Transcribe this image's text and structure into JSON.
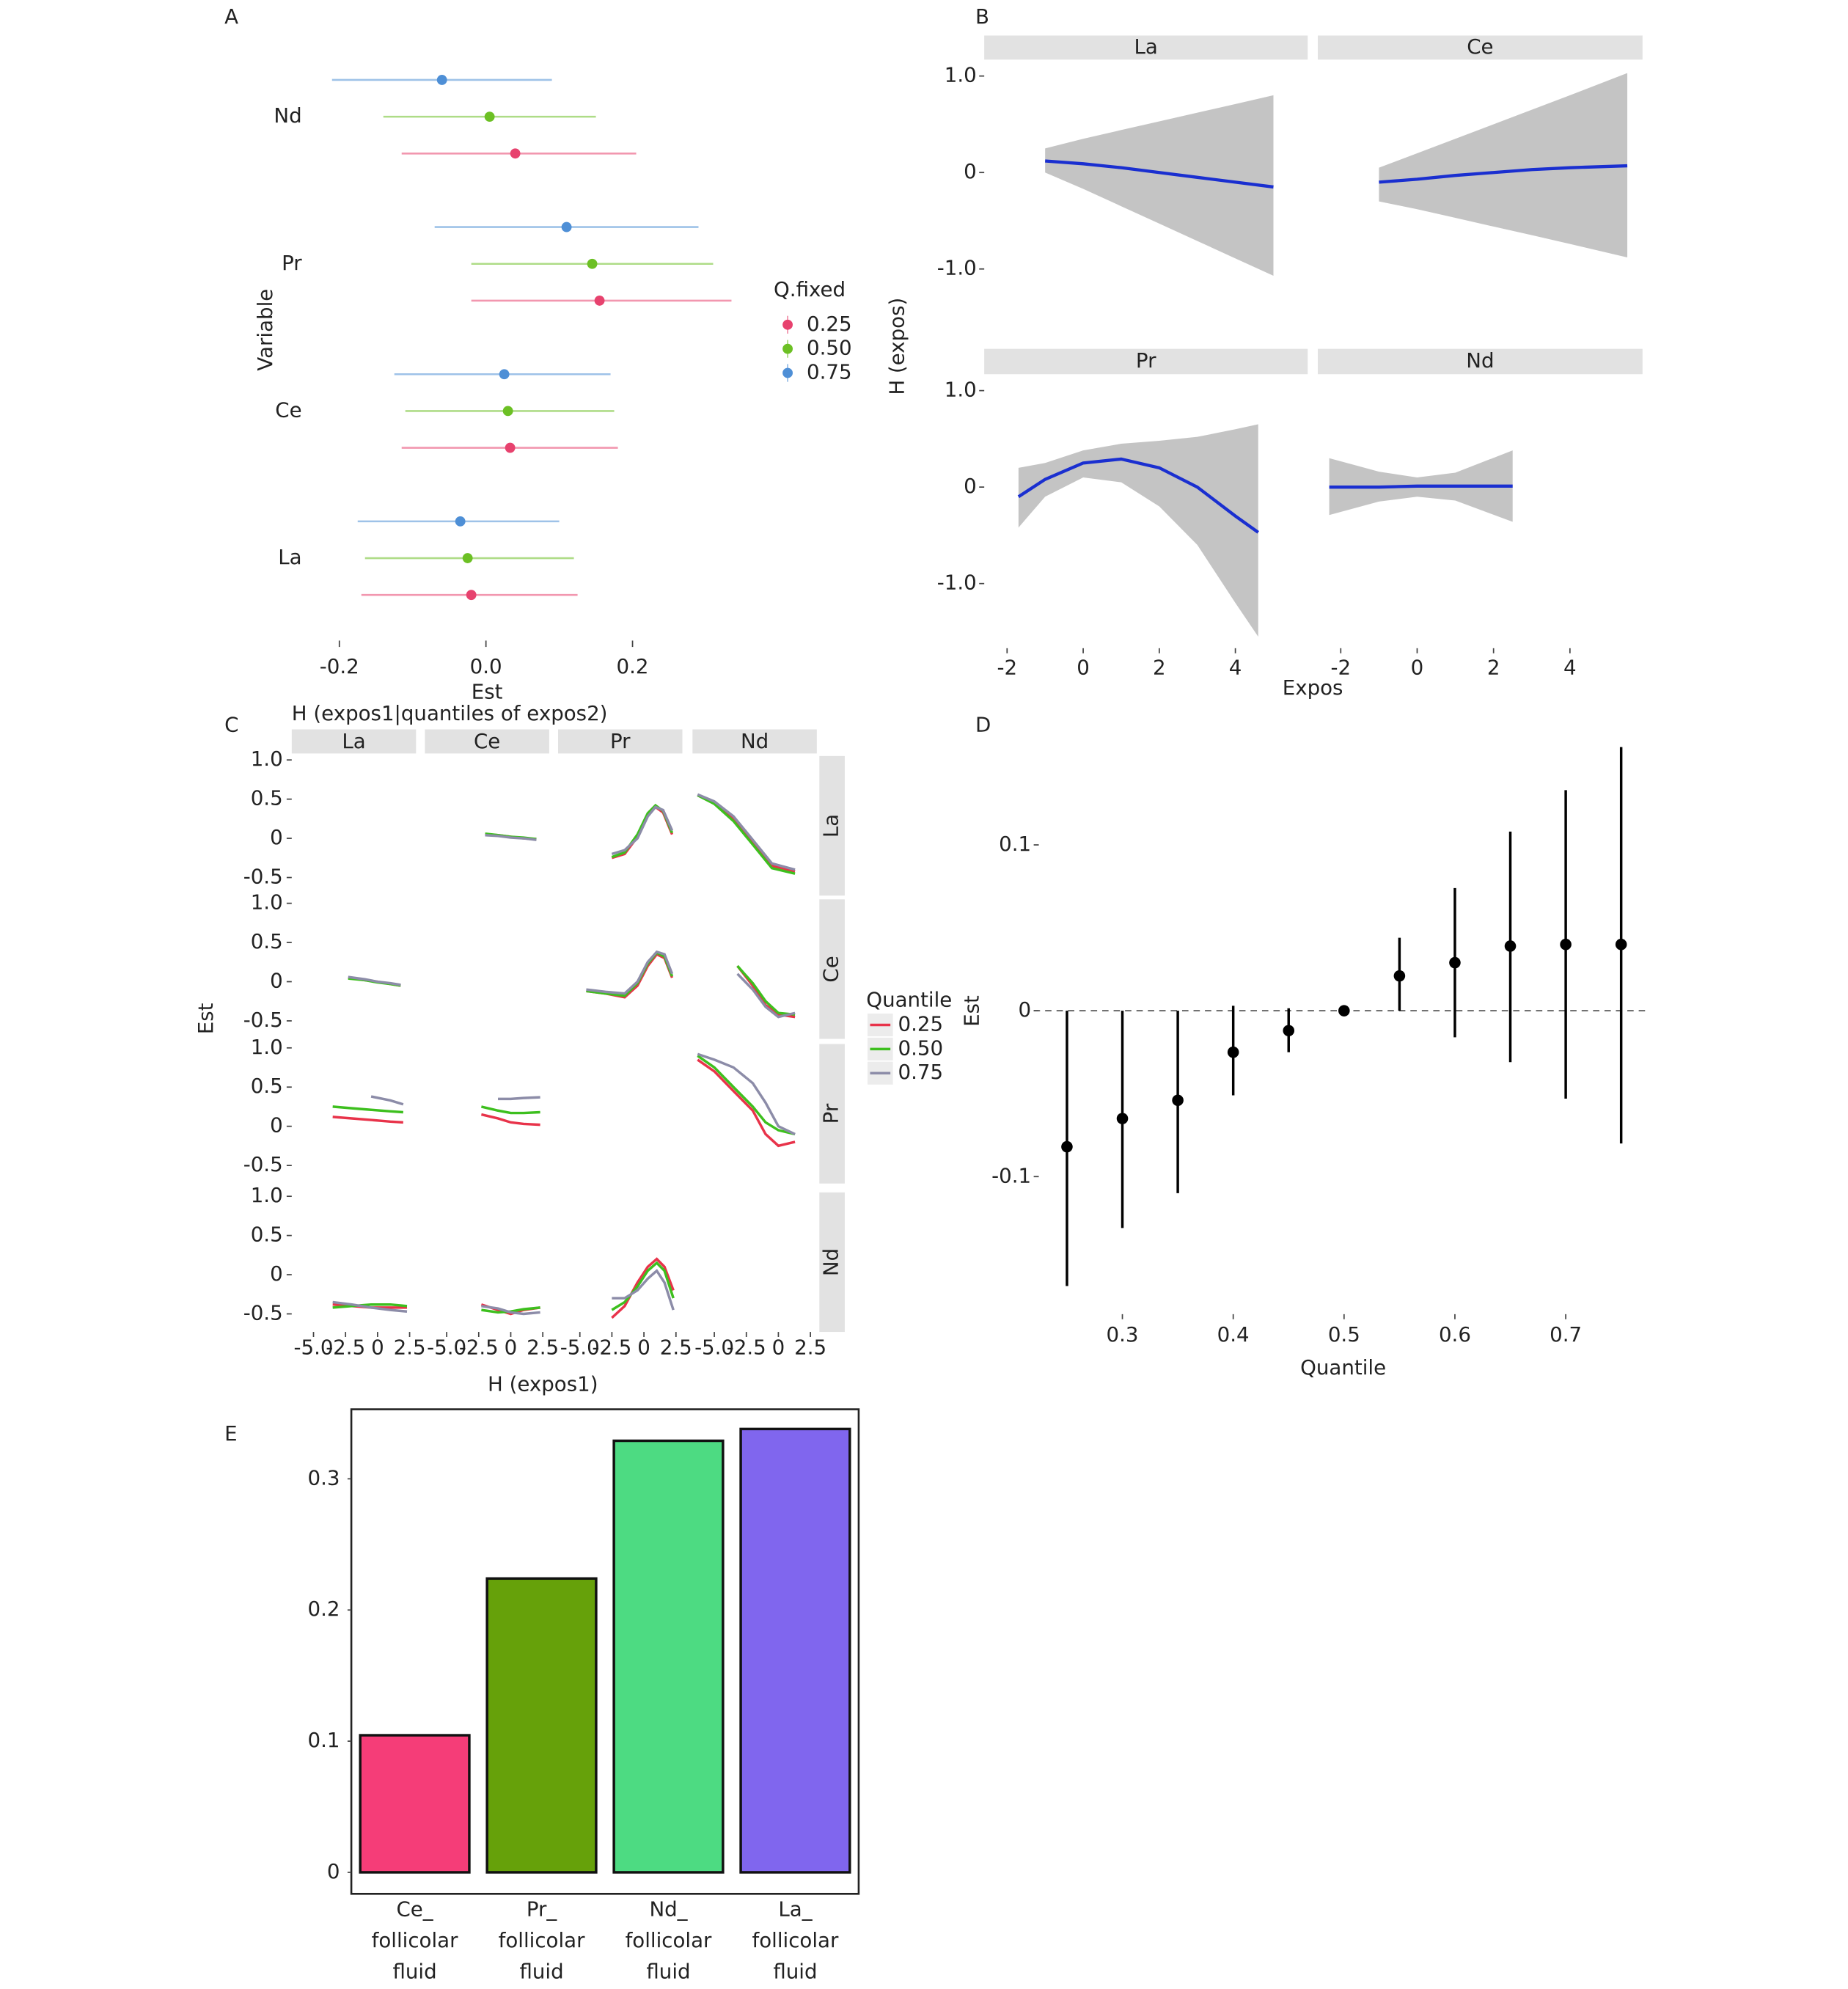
{
  "chart_data": [
    {
      "type": "forest",
      "label": "A",
      "xlabel": "Est",
      "ylabel": "Variable",
      "categories": [
        "La",
        "Ce",
        "Pr",
        "Nd"
      ],
      "legend_title": "Q.fixed",
      "xlim": [
        -0.265,
        0.358
      ],
      "xticks": [
        -0.2,
        {
          "value": 0,
          "label": "0.0"
        },
        0.2
      ],
      "series": [
        {
          "name": "0.25",
          "color": "#e7426e",
          "values": [
            -0.02,
            0.033,
            0.155,
            0.04
          ],
          "lower": [
            -0.17,
            -0.115,
            -0.02,
            -0.115
          ],
          "upper": [
            0.125,
            0.18,
            0.335,
            0.205
          ]
        },
        {
          "name": "0.50",
          "color": "#6cc024",
          "values": [
            -0.025,
            0.03,
            0.145,
            0.005
          ],
          "lower": [
            -0.165,
            -0.11,
            -0.02,
            -0.14
          ],
          "upper": [
            0.12,
            0.175,
            0.31,
            0.15
          ]
        },
        {
          "name": "0.75",
          "color": "#4e8fd6",
          "values": [
            -0.035,
            0.025,
            0.11,
            -0.06
          ],
          "lower": [
            -0.175,
            -0.125,
            -0.07,
            -0.21
          ],
          "upper": [
            0.1,
            0.17,
            0.29,
            0.09
          ]
        }
      ]
    },
    {
      "type": "smooth-facets",
      "label": "B",
      "xlabel": "Expos",
      "ylabel": "H (expos)",
      "line_color": "#1a2fd0",
      "band_color": "#c4c4c4",
      "xlim": [
        -2.6,
        5.9
      ],
      "xticks": [
        -2,
        0,
        2,
        4
      ],
      "ylim": [
        -1.67,
        1.17
      ],
      "yticks": [
        {
          "value": 1,
          "label": "1.0"
        },
        0,
        {
          "value": -1,
          "label": "-1.0"
        }
      ],
      "facets": [
        {
          "name": "La",
          "x": [
            -1,
            0,
            1,
            2,
            3,
            4,
            5
          ],
          "values": [
            0.12,
            0.09,
            0.05,
            0.0,
            -0.05,
            -0.1,
            -0.15
          ],
          "lower": [
            0.0,
            -0.17,
            -0.35,
            -0.53,
            -0.71,
            -0.89,
            -1.07
          ],
          "upper": [
            0.25,
            0.35,
            0.44,
            0.53,
            0.62,
            0.71,
            0.8
          ]
        },
        {
          "name": "Ce",
          "x": [
            -1,
            0,
            1,
            2,
            3,
            4,
            5.5
          ],
          "values": [
            -0.1,
            -0.07,
            -0.03,
            0.0,
            0.03,
            0.05,
            0.07
          ],
          "lower": [
            -0.3,
            -0.38,
            -0.47,
            -0.56,
            -0.65,
            -0.74,
            -0.88
          ],
          "upper": [
            0.05,
            0.2,
            0.35,
            0.5,
            0.65,
            0.8,
            1.03
          ]
        },
        {
          "name": "Pr",
          "x": [
            -1.7,
            -1,
            0,
            1,
            2,
            3,
            4,
            4.6
          ],
          "values": [
            -0.1,
            0.08,
            0.25,
            0.29,
            0.2,
            0.0,
            -0.3,
            -0.47
          ],
          "lower": [
            -0.42,
            -0.1,
            0.1,
            0.05,
            -0.2,
            -0.6,
            -1.2,
            -1.55
          ],
          "upper": [
            0.2,
            0.25,
            0.38,
            0.45,
            0.48,
            0.52,
            0.6,
            0.65
          ]
        },
        {
          "name": "Nd",
          "x": [
            -2.3,
            -1,
            0,
            1,
            2.5
          ],
          "values": [
            0,
            0,
            0.01,
            0.01,
            0.01
          ],
          "lower": [
            -0.29,
            -0.15,
            -0.1,
            -0.14,
            -0.36
          ],
          "upper": [
            0.3,
            0.16,
            0.1,
            0.15,
            0.38
          ]
        }
      ]
    },
    {
      "type": "line-facets",
      "label": "C",
      "title": "H (expos1|quantiles of expos2)",
      "xlabel": "H (expos1)",
      "ylabel": "Est",
      "columns": [
        "La",
        "Ce",
        "Pr",
        "Nd"
      ],
      "rows": [
        "La",
        "Ce",
        "Pr",
        "Nd"
      ],
      "legend_title": "Quantile",
      "series": [
        {
          "name": "0.25",
          "color": "#e8334a"
        },
        {
          "name": "0.50",
          "color": "#3dbf1e"
        },
        {
          "name": "0.75",
          "color": "#8c8ca8"
        }
      ],
      "xlim": [
        -6.7,
        3.0
      ],
      "xticks": [
        {
          "value": -5,
          "label": "-5.0"
        },
        -2.5,
        0,
        2.5
      ],
      "ylim": [
        -0.73,
        1.05
      ],
      "yticks": [
        {
          "value": 1,
          "label": "1.0"
        },
        0.5,
        0,
        -0.5
      ],
      "panels": [
        [
          null,
          {
            "x": [
              -2,
              -1,
              0,
              1,
              2
            ],
            "lines": [
              [
                0.05,
                0.04,
                0.02,
                0.0,
                -0.01
              ],
              [
                0.06,
                0.04,
                0.02,
                0.01,
                -0.01
              ],
              [
                0.04,
                0.03,
                0.01,
                0.0,
                -0.02
              ]
            ]
          },
          {
            "x": [
              -2.5,
              -1.5,
              -0.5,
              0.3,
              0.9,
              1.5,
              2.2
            ],
            "lines": [
              [
                -0.25,
                -0.2,
                0.02,
                0.3,
                0.4,
                0.33,
                0.05
              ],
              [
                -0.24,
                -0.18,
                0.05,
                0.32,
                0.42,
                0.35,
                0.07
              ],
              [
                -0.2,
                -0.15,
                0.0,
                0.28,
                0.4,
                0.36,
                0.1
              ]
            ]
          },
          {
            "x": [
              -6.3,
              -5,
              -3.5,
              -2,
              -0.5,
              1.3
            ],
            "lines": [
              [
                0.55,
                0.45,
                0.25,
                -0.05,
                -0.35,
                -0.42
              ],
              [
                0.55,
                0.44,
                0.22,
                -0.08,
                -0.38,
                -0.45
              ],
              [
                0.56,
                0.47,
                0.28,
                -0.02,
                -0.32,
                -0.4
              ]
            ]
          }
        ],
        [
          {
            "x": [
              -2.3,
              -1,
              0,
              1,
              1.8
            ],
            "lines": [
              [
                0.05,
                0.02,
                0.0,
                -0.03,
                -0.05
              ],
              [
                0.04,
                0.02,
                -0.01,
                -0.03,
                -0.05
              ],
              [
                0.06,
                0.03,
                0.0,
                -0.02,
                -0.04
              ]
            ]
          },
          null,
          {
            "x": [
              -4.5,
              -3,
              -1.5,
              -0.5,
              0.3,
              1,
              1.6,
              2.2
            ],
            "lines": [
              [
                -0.12,
                -0.15,
                -0.2,
                -0.05,
                0.2,
                0.35,
                0.3,
                0.05
              ],
              [
                -0.12,
                -0.15,
                -0.18,
                -0.02,
                0.23,
                0.37,
                0.32,
                0.07
              ],
              [
                -0.1,
                -0.13,
                -0.15,
                0.0,
                0.25,
                0.38,
                0.35,
                0.1
              ]
            ]
          },
          {
            "x": [
              -3.2,
              -2,
              -1,
              0,
              1.3
            ],
            "lines": [
              [
                0.2,
                -0.05,
                -0.3,
                -0.42,
                -0.45
              ],
              [
                0.2,
                -0.02,
                -0.25,
                -0.4,
                -0.42
              ],
              [
                0.1,
                -0.1,
                -0.32,
                -0.45,
                -0.4
              ]
            ]
          }
        ],
        [
          {
            "x": [
              -3.5,
              -2,
              -0.5,
              1,
              2
            ],
            "lines": [
              [
                0.12,
                0.1,
                0.08,
                0.06,
                0.05
              ],
              [
                0.25,
                0.23,
                0.21,
                0.19,
                0.18
              ],
              [
                null,
                null,
                0.38,
                0.33,
                0.28
              ]
            ]
          },
          {
            "x": [
              -2.3,
              -1,
              0,
              1,
              2.3
            ],
            "lines": [
              [
                0.15,
                0.1,
                0.05,
                0.03,
                0.02
              ],
              [
                0.25,
                0.2,
                0.17,
                0.17,
                0.18
              ],
              [
                null,
                0.35,
                0.35,
                0.36,
                0.37
              ]
            ]
          },
          null,
          {
            "x": [
              -6.3,
              -5,
              -3.5,
              -2,
              -1,
              0,
              1.3
            ],
            "lines": [
              [
                0.85,
                0.7,
                0.45,
                0.2,
                -0.1,
                -0.25,
                -0.2
              ],
              [
                0.9,
                0.75,
                0.5,
                0.25,
                0.05,
                -0.05,
                -0.1
              ],
              [
                0.92,
                0.85,
                0.75,
                0.55,
                0.3,
                0.0,
                -0.1
              ]
            ]
          }
        ],
        [
          {
            "x": [
              -3.5,
              -2,
              -0.5,
              1,
              2.3
            ],
            "lines": [
              [
                -0.38,
                -0.4,
                -0.42,
                -0.42,
                -0.42
              ],
              [
                -0.42,
                -0.4,
                -0.38,
                -0.38,
                -0.4
              ],
              [
                -0.35,
                -0.38,
                -0.42,
                -0.45,
                -0.47
              ]
            ]
          },
          {
            "x": [
              -2.3,
              -1,
              0,
              1,
              2.3
            ],
            "lines": [
              [
                -0.38,
                -0.45,
                -0.5,
                -0.45,
                -0.42
              ],
              [
                -0.45,
                -0.48,
                -0.47,
                -0.44,
                -0.42
              ],
              [
                -0.4,
                -0.43,
                -0.48,
                -0.5,
                -0.48
              ]
            ]
          },
          {
            "x": [
              -2.5,
              -1.5,
              -0.5,
              0.3,
              1,
              1.6,
              2.3
            ],
            "lines": [
              [
                -0.55,
                -0.4,
                -0.1,
                0.1,
                0.2,
                0.1,
                -0.2
              ],
              [
                -0.45,
                -0.35,
                -0.15,
                0.05,
                0.15,
                0.05,
                -0.3
              ],
              [
                -0.3,
                -0.3,
                -0.2,
                -0.05,
                0.05,
                -0.1,
                -0.45
              ]
            ]
          },
          null
        ]
      ]
    },
    {
      "type": "pointrange",
      "label": "D",
      "xlabel": "Quantile",
      "ylabel": "Est",
      "color": "#000000",
      "hline": 0,
      "x": [
        0.25,
        0.3,
        0.35,
        0.4,
        0.45,
        0.5,
        0.55,
        0.6,
        0.65,
        0.7,
        0.75
      ],
      "values": [
        -0.082,
        -0.065,
        -0.054,
        -0.025,
        -0.012,
        0,
        0.021,
        0.029,
        0.039,
        0.04,
        0.04
      ],
      "lower": [
        -0.166,
        -0.131,
        -0.11,
        -0.051,
        -0.025,
        0,
        0,
        -0.016,
        -0.031,
        -0.053,
        -0.08
      ],
      "upper": [
        0,
        0,
        0,
        0.003,
        0.0015,
        0,
        0.044,
        0.074,
        0.108,
        0.133,
        0.159
      ],
      "xlim": [
        0.22,
        0.775
      ],
      "xticks": [
        0.3,
        0.4,
        0.5,
        0.6,
        0.7
      ],
      "ylim": [
        -0.186,
        0.162
      ],
      "yticks": [
        0.1,
        0,
        -0.1
      ]
    },
    {
      "type": "bar",
      "label": "E",
      "categories": [
        [
          "Ce_",
          "follicolar",
          "fluid"
        ],
        [
          "Pr_",
          "follicolar",
          "fluid"
        ],
        [
          "Nd_",
          "follicolar",
          "fluid"
        ],
        [
          "La_",
          "follicolar",
          "fluid"
        ]
      ],
      "values": [
        0.1045,
        0.224,
        0.329,
        0.338
      ],
      "colors": [
        "#f53d78",
        "#66a10a",
        "#4ddb82",
        "#8066ee"
      ],
      "ylim": [
        -0.0164,
        0.353
      ],
      "yticks": [
        0,
        0.1,
        0.2,
        0.3
      ]
    }
  ]
}
